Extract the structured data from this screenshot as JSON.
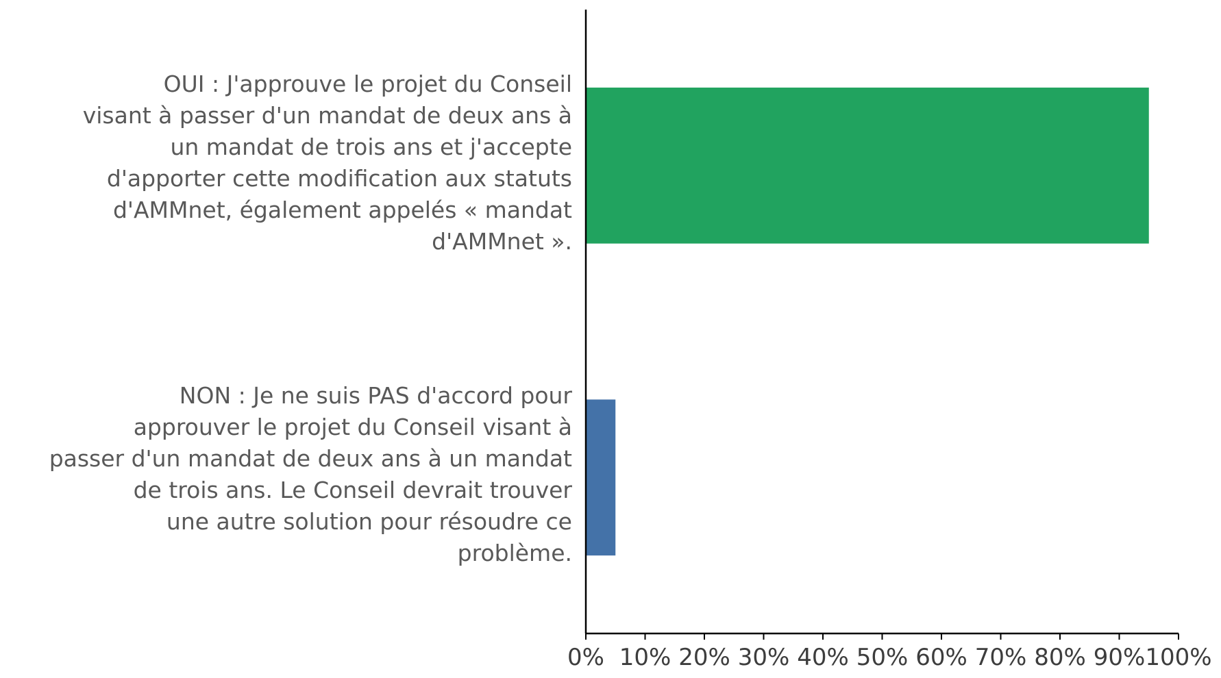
{
  "chart_data": {
    "type": "bar",
    "orientation": "horizontal",
    "title": "",
    "xlabel": "",
    "ylabel": "",
    "xlim": [
      0,
      100
    ],
    "x_ticks": [
      "0%",
      "10%",
      "20%",
      "30%",
      "40%",
      "50%",
      "60%",
      "70%",
      "80%",
      "90%",
      "100%"
    ],
    "categories": [
      {
        "label_lines": [
          "OUI : J'approuve le projet du Conseil",
          "visant à passer d'un mandat de deux ans à",
          "un mandat de trois ans et j'accepte",
          "d'apporter cette modification aux statuts",
          "d'AMMnet, également appelés « mandat",
          "d'AMMnet »."
        ],
        "value": 95,
        "color": "#21a35f"
      },
      {
        "label_lines": [
          "NON : Je ne suis PAS d'accord pour",
          "approuver le projet du Conseil visant à",
          "passer d'un mandat de deux ans à un mandat",
          "de trois ans. Le Conseil devrait trouver",
          "une autre solution pour résoudre ce",
          "problème."
        ],
        "value": 5,
        "color": "#4472a8"
      }
    ],
    "grid": false,
    "legend": "none"
  }
}
